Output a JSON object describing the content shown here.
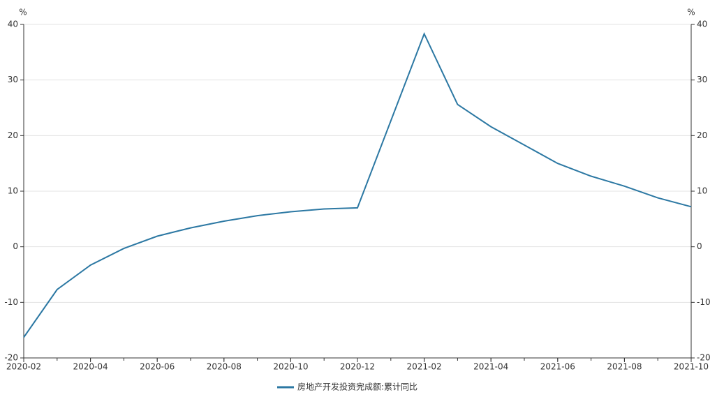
{
  "chart_data": {
    "type": "line",
    "x": [
      "2020-02",
      "2020-03",
      "2020-04",
      "2020-05",
      "2020-06",
      "2020-07",
      "2020-08",
      "2020-09",
      "2020-10",
      "2020-11",
      "2020-12",
      "2021-02",
      "2021-03",
      "2021-04",
      "2021-05",
      "2021-06",
      "2021-07",
      "2021-08",
      "2021-09",
      "2021-10"
    ],
    "series": [
      {
        "name": "房地产开发投资完成额:累计同比",
        "color": "#2c78a3",
        "values": [
          -16.3,
          -7.7,
          -3.3,
          -0.3,
          1.9,
          3.4,
          4.6,
          5.6,
          6.3,
          6.8,
          7.0,
          38.3,
          25.6,
          21.6,
          18.3,
          15.0,
          12.7,
          10.9,
          8.8,
          7.2
        ]
      }
    ],
    "xticks": [
      "2020-02",
      "2020-04",
      "2020-06",
      "2020-08",
      "2020-10",
      "2020-12",
      "2021-02",
      "2021-04",
      "2021-06",
      "2021-08",
      "2021-10"
    ],
    "ylim": [
      -20,
      40
    ],
    "yticks": [
      -20,
      -10,
      0,
      10,
      20,
      30,
      40
    ],
    "y2lim": [
      -20,
      40
    ],
    "y2ticks": [
      -20,
      -10,
      0,
      10,
      20,
      30,
      40
    ],
    "y_unit": "%",
    "y2_unit": "%",
    "grid": true,
    "legend": "bottom"
  }
}
